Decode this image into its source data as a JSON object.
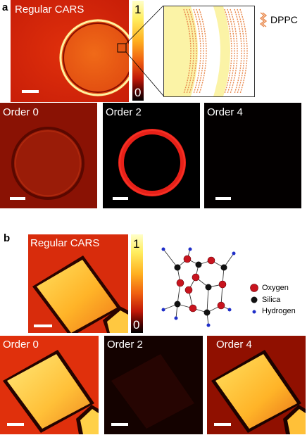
{
  "panel_a": {
    "letter": "a",
    "main_label": "Regular CARS",
    "colorbar_max": "1",
    "colorbar_min": "0",
    "inset_molecule_label": "DPPC",
    "sub_labels": [
      "Order 0",
      "Order 2",
      "Order 4"
    ]
  },
  "panel_b": {
    "letter": "b",
    "main_label": "Regular CARS",
    "colorbar_max": "1",
    "colorbar_min": "0",
    "legend": [
      "Oxygen",
      "Silica",
      "Hydrogen"
    ],
    "sub_labels": [
      "Order 0",
      "Order 2",
      "Order 4"
    ]
  },
  "colors": {
    "oxygen": "#c8141e",
    "silica": "#111111",
    "hydrogen": "#1f2ec8",
    "lipid": "#e8874a"
  }
}
